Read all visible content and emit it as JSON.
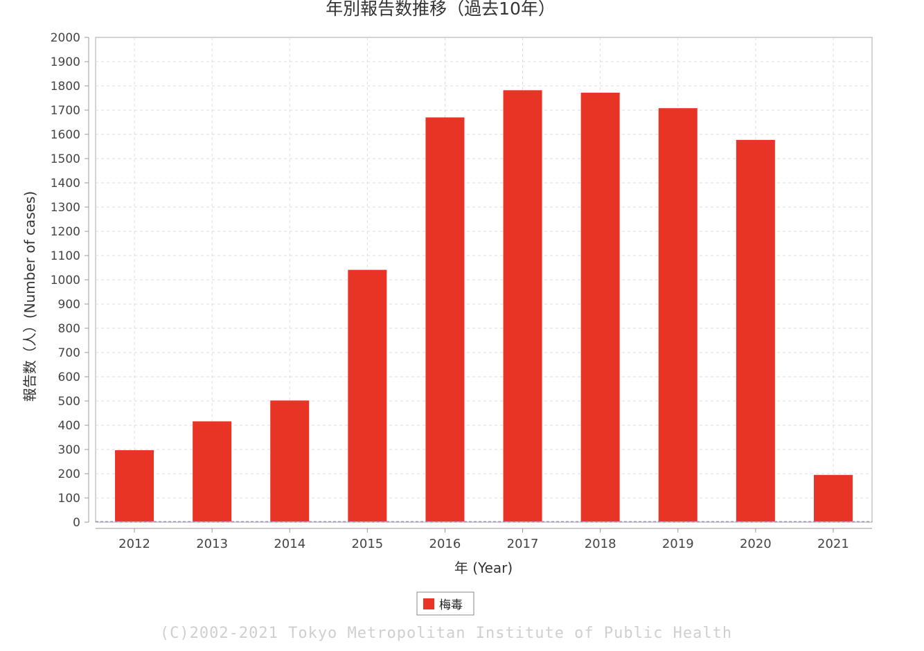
{
  "chart_data": {
    "type": "bar",
    "title": "年別報告数推移（過去10年）",
    "xlabel": "年 (Year)",
    "ylabel": "報告数（人）(Number of cases)",
    "categories": [
      "2012",
      "2013",
      "2014",
      "2015",
      "2016",
      "2017",
      "2018",
      "2019",
      "2020",
      "2021"
    ],
    "series": [
      {
        "name": "梅毒",
        "values": [
          297,
          416,
          502,
          1041,
          1670,
          1782,
          1772,
          1708,
          1577,
          195
        ]
      }
    ],
    "ylim": [
      0,
      2000
    ],
    "yticks": [
      0,
      100,
      200,
      300,
      400,
      500,
      600,
      700,
      800,
      900,
      1000,
      1100,
      1200,
      1300,
      1400,
      1500,
      1600,
      1700,
      1800,
      1900,
      2000
    ],
    "grid": true,
    "legend_position": "bottom-center",
    "colors": {
      "bar": "#e83424",
      "grid": "#dddddd",
      "axis": "#999999",
      "baseline": "#8888bb"
    }
  },
  "footer": {
    "copyright": "(C)2002-2021 Tokyo Metropolitan Institute of Public Health"
  }
}
